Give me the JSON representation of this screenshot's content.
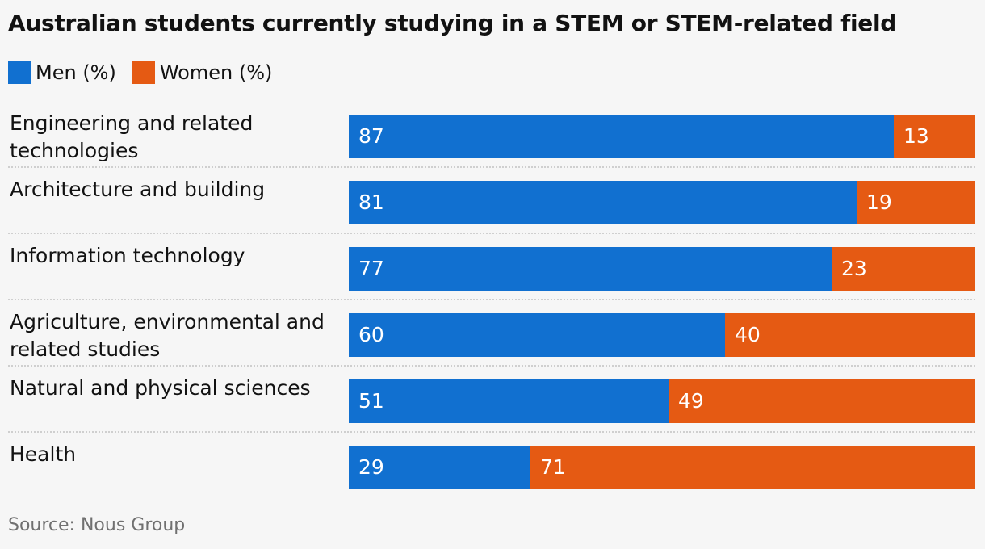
{
  "chart_data": {
    "type": "bar",
    "orientation": "horizontal",
    "stacked": true,
    "title": "Australian students currently studying in a STEM or STEM-related field",
    "categories": [
      "Engineering and related technologies",
      "Architecture and building",
      "Information technology",
      "Agriculture, environmental and related studies",
      "Natural and physical sciences",
      "Health"
    ],
    "series": [
      {
        "name": "Men (%)",
        "color": "#1170d0",
        "values": [
          87,
          81,
          77,
          60,
          51,
          29
        ]
      },
      {
        "name": "Women (%)",
        "color": "#e55a13",
        "values": [
          13,
          19,
          23,
          40,
          49,
          71
        ]
      }
    ],
    "xlim": [
      0,
      100
    ],
    "legend_position": "top-left",
    "grid": false,
    "source": "Source: Nous Group"
  }
}
